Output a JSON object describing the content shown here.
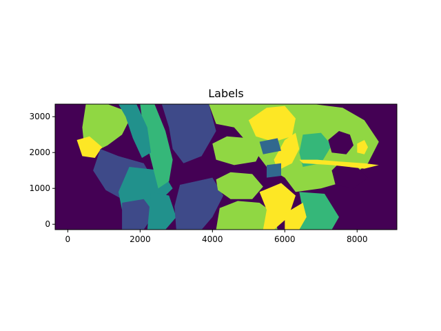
{
  "chart_data": {
    "type": "heatmap",
    "title": "Labels",
    "xlabel": "",
    "ylabel": "",
    "xlim": [
      -350,
      9100
    ],
    "ylim": [
      -150,
      3350
    ],
    "x_ticks": [
      0,
      2000,
      4000,
      6000,
      8000
    ],
    "y_ticks": [
      0,
      1000,
      2000,
      3000
    ],
    "colormap": "viridis",
    "colors": {
      "background": "#440154",
      "indigo": "#3e4a89",
      "blue": "#31688e",
      "teal": "#21918c",
      "green": "#35b779",
      "lime": "#90d743",
      "yellow": "#fde725"
    },
    "regions": [
      {
        "name": "left-lime",
        "color": "lime",
        "points": [
          [
            500,
            3350
          ],
          [
            1100,
            3350
          ],
          [
            1500,
            3200
          ],
          [
            1700,
            2900
          ],
          [
            1500,
            2500
          ],
          [
            1100,
            2200
          ],
          [
            700,
            2000
          ],
          [
            450,
            2200
          ],
          [
            400,
            2700
          ]
        ]
      },
      {
        "name": "left-yellow",
        "color": "yellow",
        "points": [
          [
            250,
            2350
          ],
          [
            600,
            2450
          ],
          [
            950,
            2150
          ],
          [
            750,
            1850
          ],
          [
            400,
            1900
          ]
        ]
      },
      {
        "name": "left-indigo",
        "color": "indigo",
        "points": [
          [
            900,
            2100
          ],
          [
            1400,
            1900
          ],
          [
            2100,
            1700
          ],
          [
            2300,
            1350
          ],
          [
            1900,
            900
          ],
          [
            1500,
            700
          ],
          [
            1050,
            950
          ],
          [
            700,
            1500
          ]
        ]
      },
      {
        "name": "lower-teal",
        "color": "teal",
        "points": [
          [
            1700,
            1600
          ],
          [
            2600,
            1500
          ],
          [
            2900,
            1000
          ],
          [
            2400,
            500
          ],
          [
            1800,
            250
          ],
          [
            1500,
            400
          ],
          [
            1400,
            900
          ]
        ]
      },
      {
        "name": "center-green-band",
        "color": "green",
        "points": [
          [
            2000,
            3350
          ],
          [
            2400,
            3350
          ],
          [
            2700,
            2600
          ],
          [
            2900,
            1800
          ],
          [
            2800,
            1200
          ],
          [
            2500,
            1000
          ],
          [
            2300,
            1800
          ],
          [
            2100,
            2600
          ]
        ]
      },
      {
        "name": "upper-teal-band",
        "color": "teal",
        "points": [
          [
            1400,
            3350
          ],
          [
            1900,
            3350
          ],
          [
            2200,
            2700
          ],
          [
            2300,
            2000
          ],
          [
            2050,
            1850
          ],
          [
            1800,
            2400
          ],
          [
            1600,
            3000
          ]
        ]
      },
      {
        "name": "lower-indigo",
        "color": "indigo",
        "points": [
          [
            1500,
            600
          ],
          [
            2100,
            700
          ],
          [
            2400,
            300
          ],
          [
            2100,
            -150
          ],
          [
            1500,
            -150
          ]
        ]
      },
      {
        "name": "center-teal-bottom",
        "color": "teal",
        "points": [
          [
            2300,
            900
          ],
          [
            2800,
            800
          ],
          [
            3000,
            200
          ],
          [
            2700,
            -150
          ],
          [
            2200,
            -150
          ]
        ]
      },
      {
        "name": "center-indigo",
        "color": "indigo",
        "points": [
          [
            2600,
            3350
          ],
          [
            3900,
            3350
          ],
          [
            4100,
            2600
          ],
          [
            3700,
            1900
          ],
          [
            3200,
            1700
          ],
          [
            2900,
            2100
          ],
          [
            2800,
            2700
          ]
        ]
      },
      {
        "name": "center-indigo-lower",
        "color": "indigo",
        "points": [
          [
            3100,
            1100
          ],
          [
            4000,
            1300
          ],
          [
            4300,
            800
          ],
          [
            4000,
            200
          ],
          [
            3700,
            -150
          ],
          [
            3000,
            -150
          ],
          [
            2950,
            500
          ]
        ]
      },
      {
        "name": "right-lime-main",
        "color": "lime",
        "points": [
          [
            3900,
            3350
          ],
          [
            5400,
            3350
          ],
          [
            6800,
            3350
          ],
          [
            7600,
            3250
          ],
          [
            8200,
            2900
          ],
          [
            8600,
            2300
          ],
          [
            8300,
            1700
          ],
          [
            7700,
            1200
          ],
          [
            7000,
            1000
          ],
          [
            6300,
            900
          ],
          [
            6000,
            1300
          ],
          [
            5500,
            1600
          ],
          [
            5200,
            2000
          ],
          [
            4600,
            2700
          ],
          [
            4100,
            2800
          ]
        ]
      },
      {
        "name": "ellipse-upper",
        "color": "lime",
        "points": [
          [
            4000,
            2250
          ],
          [
            4400,
            2450
          ],
          [
            5000,
            2400
          ],
          [
            5400,
            2150
          ],
          [
            5200,
            1750
          ],
          [
            4600,
            1650
          ],
          [
            4100,
            1800
          ]
        ]
      },
      {
        "name": "ellipse-lower",
        "color": "lime",
        "points": [
          [
            4100,
            1250
          ],
          [
            4500,
            1450
          ],
          [
            5100,
            1400
          ],
          [
            5400,
            1050
          ],
          [
            5100,
            700
          ],
          [
            4500,
            700
          ],
          [
            4150,
            950
          ]
        ]
      },
      {
        "name": "bottom-lime",
        "color": "lime",
        "points": [
          [
            4200,
            450
          ],
          [
            4700,
            650
          ],
          [
            5300,
            600
          ],
          [
            5700,
            300
          ],
          [
            5800,
            -150
          ],
          [
            4100,
            -150
          ]
        ]
      },
      {
        "name": "top-yellow",
        "color": "yellow",
        "points": [
          [
            5000,
            2900
          ],
          [
            5500,
            3250
          ],
          [
            6000,
            3300
          ],
          [
            6300,
            2950
          ],
          [
            6200,
            2450
          ],
          [
            5700,
            2300
          ],
          [
            5200,
            2450
          ]
        ]
      },
      {
        "name": "mid-yellow",
        "color": "yellow",
        "points": [
          [
            5800,
            1500
          ],
          [
            6200,
            1700
          ],
          [
            6400,
            2100
          ],
          [
            6300,
            2550
          ],
          [
            6000,
            2350
          ],
          [
            5700,
            1800
          ]
        ]
      },
      {
        "name": "bottom-yellow",
        "color": "yellow",
        "points": [
          [
            5300,
            900
          ],
          [
            5900,
            1150
          ],
          [
            6300,
            800
          ],
          [
            6100,
            200
          ],
          [
            5700,
            -150
          ],
          [
            5400,
            -150
          ],
          [
            5500,
            400
          ]
        ]
      },
      {
        "name": "right-green",
        "color": "green",
        "points": [
          [
            6500,
            2500
          ],
          [
            7000,
            2550
          ],
          [
            7300,
            2200
          ],
          [
            7000,
            1700
          ],
          [
            6500,
            1600
          ],
          [
            6400,
            2000
          ]
        ]
      },
      {
        "name": "bottom-right-green",
        "color": "green",
        "points": [
          [
            6400,
            900
          ],
          [
            7100,
            850
          ],
          [
            7500,
            200
          ],
          [
            7300,
            -150
          ],
          [
            6300,
            -150
          ],
          [
            6500,
            400
          ]
        ]
      },
      {
        "name": "bottom-yellow-2",
        "color": "yellow",
        "points": [
          [
            6000,
            300
          ],
          [
            6500,
            600
          ],
          [
            6600,
            200
          ],
          [
            6400,
            -150
          ],
          [
            6000,
            -150
          ]
        ]
      },
      {
        "name": "hole-upper",
        "color": "background",
        "points": [
          [
            7200,
            2350
          ],
          [
            7500,
            2600
          ],
          [
            7800,
            2500
          ],
          [
            7900,
            2200
          ],
          [
            7700,
            1950
          ],
          [
            7300,
            2000
          ]
        ]
      },
      {
        "name": "hole-lower",
        "color": "background",
        "points": [
          [
            7300,
            1500
          ],
          [
            7500,
            1700
          ],
          [
            8000,
            1600
          ],
          [
            8300,
            1300
          ],
          [
            7900,
            1000
          ],
          [
            7400,
            1100
          ]
        ]
      },
      {
        "name": "right-hole-yellow",
        "color": "yellow",
        "points": [
          [
            8000,
            2250
          ],
          [
            8200,
            2350
          ],
          [
            8300,
            2150
          ],
          [
            8200,
            1950
          ],
          [
            8000,
            2000
          ]
        ]
      },
      {
        "name": "right-stripe-yellow",
        "color": "yellow",
        "points": [
          [
            6400,
            1800
          ],
          [
            6900,
            1800
          ],
          [
            7500,
            1750
          ],
          [
            8200,
            1700
          ],
          [
            8600,
            1650
          ],
          [
            8200,
            1550
          ],
          [
            7300,
            1650
          ],
          [
            6500,
            1700
          ]
        ]
      },
      {
        "name": "small-blue",
        "color": "blue",
        "points": [
          [
            5300,
            2300
          ],
          [
            5800,
            2400
          ],
          [
            5900,
            2050
          ],
          [
            5400,
            1950
          ]
        ]
      },
      {
        "name": "small-blue-2",
        "color": "blue",
        "points": [
          [
            5500,
            1650
          ],
          [
            5900,
            1700
          ],
          [
            5900,
            1350
          ],
          [
            5500,
            1300
          ]
        ]
      }
    ]
  }
}
